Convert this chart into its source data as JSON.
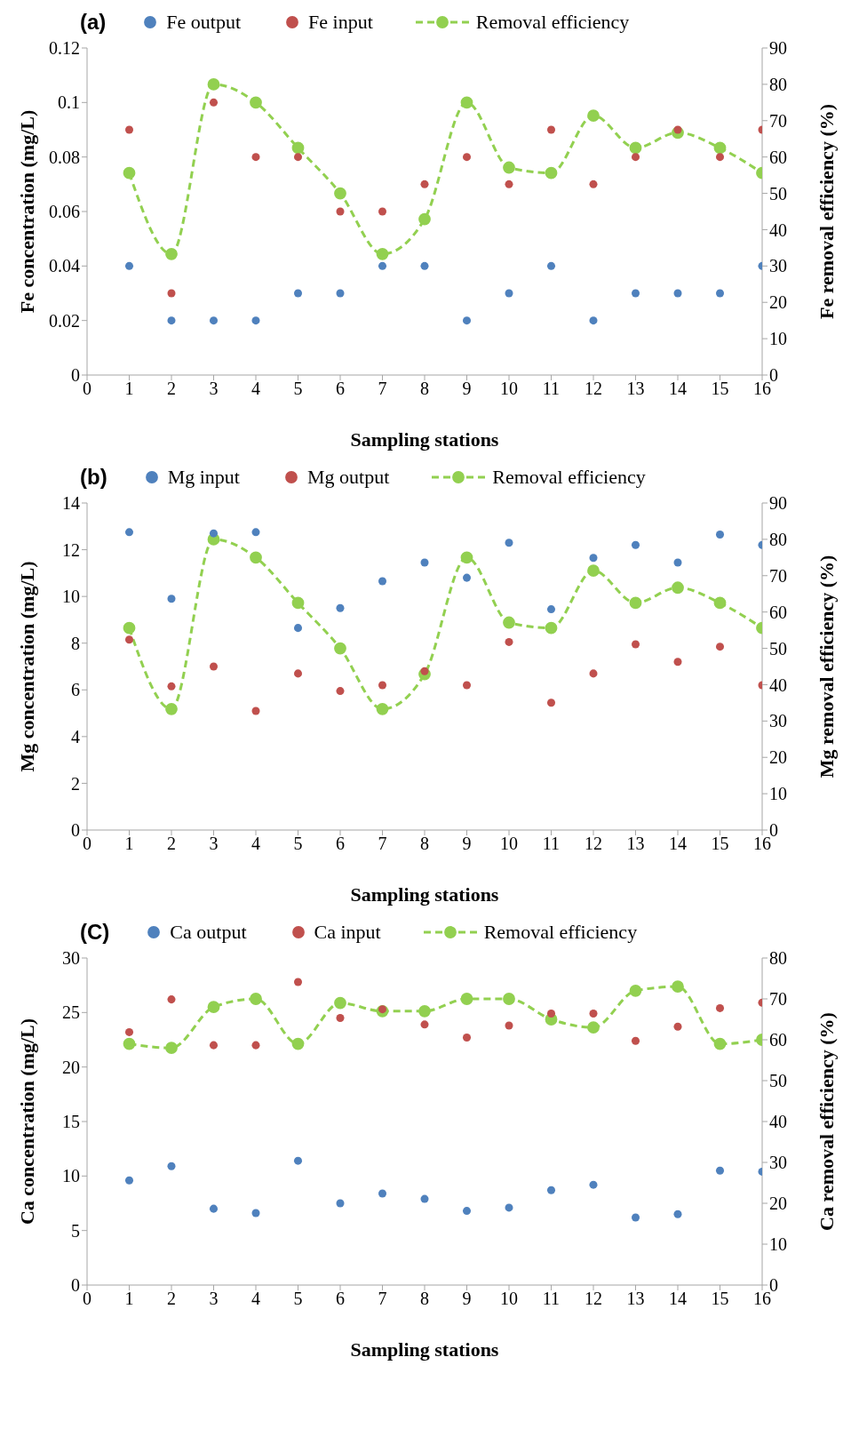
{
  "chart_data": [
    {
      "type": "scatter",
      "title": "(a)",
      "xlabel": "Sampling stations",
      "ylabel": "Fe concentration (mg/L)",
      "y2label": "Fe removal efficiency (%)",
      "x": [
        1,
        2,
        3,
        4,
        5,
        6,
        7,
        8,
        9,
        10,
        11,
        12,
        13,
        14,
        15,
        16
      ],
      "xlim": [
        0,
        16
      ],
      "xticks": [
        0,
        1,
        2,
        3,
        4,
        5,
        6,
        7,
        8,
        9,
        10,
        11,
        12,
        13,
        14,
        15,
        16
      ],
      "ylim": [
        0,
        0.12
      ],
      "yticks": [
        0,
        0.02,
        0.04,
        0.06,
        0.08,
        0.1,
        0.12
      ],
      "y2lim": [
        0,
        90
      ],
      "y2ticks": [
        0,
        10,
        20,
        30,
        40,
        50,
        60,
        70,
        80,
        90
      ],
      "legend": "top",
      "grid": false,
      "marker": "circle",
      "series": [
        {
          "name": "Fe output",
          "type": "scatter",
          "color": "#4f81bd",
          "values": [
            0.04,
            0.02,
            0.02,
            0.02,
            0.03,
            0.03,
            0.04,
            0.04,
            0.02,
            0.03,
            0.04,
            0.02,
            0.03,
            0.03,
            0.03,
            0.04
          ]
        },
        {
          "name": "Fe input",
          "type": "scatter",
          "color": "#c0504d",
          "values": [
            0.09,
            0.03,
            0.1,
            0.08,
            0.08,
            0.06,
            0.06,
            0.07,
            0.08,
            0.07,
            0.09,
            0.07,
            0.08,
            0.09,
            0.08,
            0.09
          ]
        },
        {
          "name": "Removal efficiency",
          "type": "line",
          "axis": "y2",
          "line_style": "dashed",
          "color": "#92d050",
          "values": [
            55.6,
            33.3,
            80,
            75,
            62.5,
            50,
            33.3,
            42.9,
            75,
            57.1,
            55.6,
            71.4,
            62.5,
            66.7,
            62.5,
            55.6
          ]
        }
      ]
    },
    {
      "type": "scatter",
      "title": "(b)",
      "xlabel": "Sampling stations",
      "ylabel": "Mg concentration (mg/L)",
      "y2label": "Mg removal efficiency (%)",
      "x": [
        1,
        2,
        3,
        4,
        5,
        6,
        7,
        8,
        9,
        10,
        11,
        12,
        13,
        14,
        15,
        16
      ],
      "xlim": [
        0,
        16
      ],
      "xticks": [
        0,
        1,
        2,
        3,
        4,
        5,
        6,
        7,
        8,
        9,
        10,
        11,
        12,
        13,
        14,
        15,
        16
      ],
      "ylim": [
        0,
        14
      ],
      "yticks": [
        0,
        2,
        4,
        6,
        8,
        10,
        12,
        14
      ],
      "y2lim": [
        0,
        90
      ],
      "y2ticks": [
        0,
        10,
        20,
        30,
        40,
        50,
        60,
        70,
        80,
        90
      ],
      "legend": "top",
      "grid": false,
      "marker": "circle",
      "series": [
        {
          "name": "Mg input",
          "type": "scatter",
          "color": "#4f81bd",
          "values": [
            12.75,
            9.9,
            12.7,
            12.75,
            8.65,
            9.5,
            10.65,
            11.45,
            10.8,
            12.3,
            9.45,
            11.65,
            12.2,
            11.45,
            12.65,
            12.2
          ]
        },
        {
          "name": "Mg output",
          "type": "scatter",
          "color": "#c0504d",
          "values": [
            8.15,
            6.15,
            7.0,
            5.1,
            6.7,
            5.95,
            6.2,
            6.8,
            6.2,
            8.05,
            5.45,
            6.7,
            7.95,
            7.2,
            7.85,
            6.2
          ]
        },
        {
          "name": "Removal efficiency",
          "type": "line",
          "axis": "y2",
          "line_style": "dashed",
          "color": "#92d050",
          "values": [
            55.6,
            33.3,
            80,
            75,
            62.5,
            50,
            33.3,
            42.9,
            75,
            57.1,
            55.6,
            71.4,
            62.5,
            66.7,
            62.5,
            55.6
          ]
        }
      ]
    },
    {
      "type": "scatter",
      "title": "(C)",
      "xlabel": "Sampling stations",
      "ylabel": "Ca concentration (mg/L)",
      "y2label": "Ca removal efficiency (%)",
      "x": [
        1,
        2,
        3,
        4,
        5,
        6,
        7,
        8,
        9,
        10,
        11,
        12,
        13,
        14,
        15,
        16
      ],
      "xlim": [
        0,
        16
      ],
      "xticks": [
        0,
        1,
        2,
        3,
        4,
        5,
        6,
        7,
        8,
        9,
        10,
        11,
        12,
        13,
        14,
        15,
        16
      ],
      "ylim": [
        0,
        30
      ],
      "yticks": [
        0,
        5,
        10,
        15,
        20,
        25,
        30
      ],
      "y2lim": [
        0,
        80
      ],
      "y2ticks": [
        0,
        10,
        20,
        30,
        40,
        50,
        60,
        70,
        80
      ],
      "legend": "top",
      "grid": false,
      "marker": "circle",
      "series": [
        {
          "name": "Ca output",
          "type": "scatter",
          "color": "#4f81bd",
          "values": [
            9.6,
            10.9,
            7.0,
            6.6,
            11.4,
            7.5,
            8.4,
            7.9,
            6.8,
            7.1,
            8.7,
            9.2,
            6.2,
            6.5,
            10.5,
            10.4
          ]
        },
        {
          "name": "Ca input",
          "type": "scatter",
          "color": "#c0504d",
          "values": [
            23.2,
            26.2,
            22.0,
            22.0,
            27.8,
            24.5,
            25.3,
            23.9,
            22.7,
            23.8,
            24.9,
            24.9,
            22.4,
            23.7,
            25.4,
            25.9
          ]
        },
        {
          "name": "Removal efficiency",
          "type": "line",
          "axis": "y2",
          "line_style": "dashed",
          "color": "#92d050",
          "values": [
            59,
            58,
            68,
            70,
            59,
            69,
            67,
            67,
            70,
            70,
            65,
            63,
            72,
            73,
            59,
            60
          ]
        }
      ]
    }
  ]
}
